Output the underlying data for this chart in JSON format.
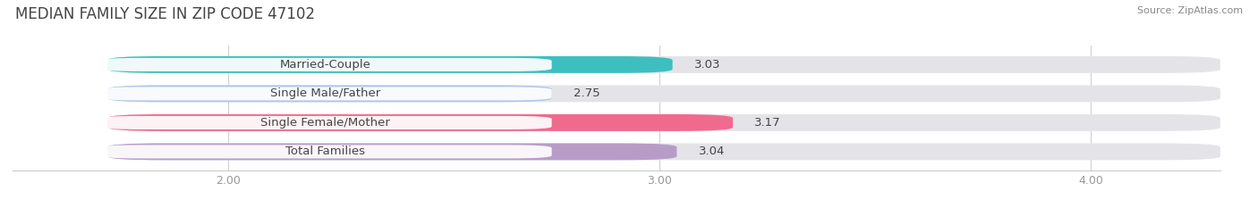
{
  "title": "MEDIAN FAMILY SIZE IN ZIP CODE 47102",
  "source": "Source: ZipAtlas.com",
  "categories": [
    "Married-Couple",
    "Single Male/Father",
    "Single Female/Mother",
    "Total Families"
  ],
  "values": [
    3.03,
    2.75,
    3.17,
    3.04
  ],
  "bar_colors": [
    "#3dbfbf",
    "#aec6e8",
    "#f06a8e",
    "#b89cc8"
  ],
  "xlim": [
    1.5,
    4.3
  ],
  "xstart": 1.72,
  "xticks": [
    2.0,
    3.0,
    4.0
  ],
  "xtick_labels": [
    "2.00",
    "3.00",
    "4.00"
  ],
  "bar_height": 0.58,
  "background_color": "#ffffff",
  "bar_bg_color": "#e8e8e8",
  "label_fontsize": 9.5,
  "value_fontsize": 9.5,
  "title_fontsize": 12,
  "label_pill_color": "#ffffff",
  "grid_color": "#d0d0d0",
  "text_color": "#444444"
}
